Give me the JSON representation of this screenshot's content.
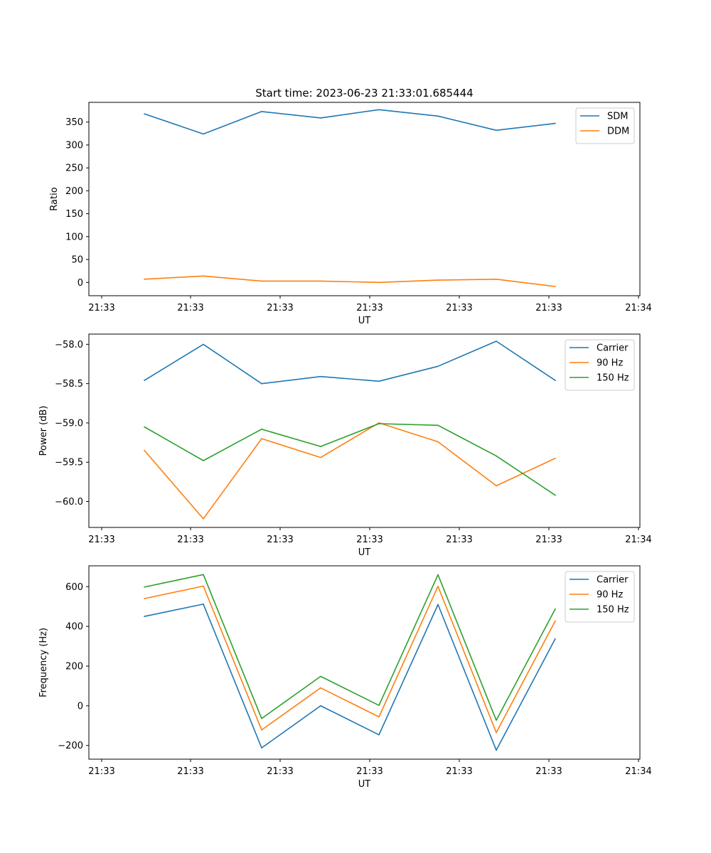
{
  "figure": {
    "title": "Start time: 2023-06-23 21:33:01.685444"
  },
  "chart_data": [
    {
      "type": "line",
      "title": "Start time: 2023-06-23 21:33:01.685444",
      "xlabel": "UT",
      "ylabel": "Ratio",
      "x_tick_labels": [
        "21:33",
        "21:33",
        "21:33",
        "21:33",
        "21:33",
        "21:33",
        "21:34"
      ],
      "y_ticks": [
        0,
        50,
        100,
        150,
        200,
        250,
        300,
        350
      ],
      "ylim": [
        -29,
        393
      ],
      "legend_position": "upper-right",
      "series": [
        {
          "name": "SDM",
          "color": "#1f77b4",
          "values": [
            368,
            324,
            373,
            359,
            377,
            363,
            332,
            347
          ]
        },
        {
          "name": "DDM",
          "color": "#ff7f0e",
          "values": [
            7,
            14,
            3,
            3,
            0,
            5,
            7,
            -9
          ]
        }
      ]
    },
    {
      "type": "line",
      "xlabel": "UT",
      "ylabel": "Power (dB)",
      "x_tick_labels": [
        "21:33",
        "21:33",
        "21:33",
        "21:33",
        "21:33",
        "21:33",
        "21:34"
      ],
      "y_ticks": [
        -60.0,
        -59.5,
        -59.0,
        -58.5,
        -58.0
      ],
      "y_tick_labels": [
        "−60.0",
        "−59.5",
        "−59.0",
        "−58.5",
        "−58.0"
      ],
      "ylim": [
        -60.33,
        -57.87
      ],
      "legend_position": "upper-right",
      "series": [
        {
          "name": "Carrier",
          "color": "#1f77b4",
          "values": [
            -58.46,
            -58.0,
            -58.5,
            -58.41,
            -58.47,
            -58.28,
            -57.96,
            -58.46
          ]
        },
        {
          "name": "90 Hz",
          "color": "#ff7f0e",
          "values": [
            -59.35,
            -60.22,
            -59.2,
            -59.44,
            -59.0,
            -59.24,
            -59.8,
            -59.45
          ]
        },
        {
          "name": "150 Hz",
          "color": "#2ca02c",
          "values": [
            -59.05,
            -59.48,
            -59.08,
            -59.3,
            -59.01,
            -59.03,
            -59.42,
            -59.92
          ]
        }
      ]
    },
    {
      "type": "line",
      "xlabel": "UT",
      "ylabel": "Frequency (Hz)",
      "x_tick_labels": [
        "21:33",
        "21:33",
        "21:33",
        "21:33",
        "21:33",
        "21:33",
        "21:34"
      ],
      "y_ticks": [
        -200,
        0,
        200,
        400,
        600
      ],
      "y_tick_labels": [
        "−200",
        "0",
        "200",
        "400",
        "600"
      ],
      "ylim": [
        -269,
        705
      ],
      "legend_position": "upper-right",
      "series": [
        {
          "name": "Carrier",
          "color": "#1f77b4",
          "values": [
            450,
            512,
            -212,
            0,
            -146,
            510,
            -224,
            338
          ]
        },
        {
          "name": "90 Hz",
          "color": "#ff7f0e",
          "values": [
            540,
            603,
            -122,
            90,
            -56,
            602,
            -135,
            428
          ]
        },
        {
          "name": "150 Hz",
          "color": "#2ca02c",
          "values": [
            598,
            661,
            -64,
            148,
            2,
            660,
            -73,
            488
          ]
        }
      ]
    }
  ]
}
